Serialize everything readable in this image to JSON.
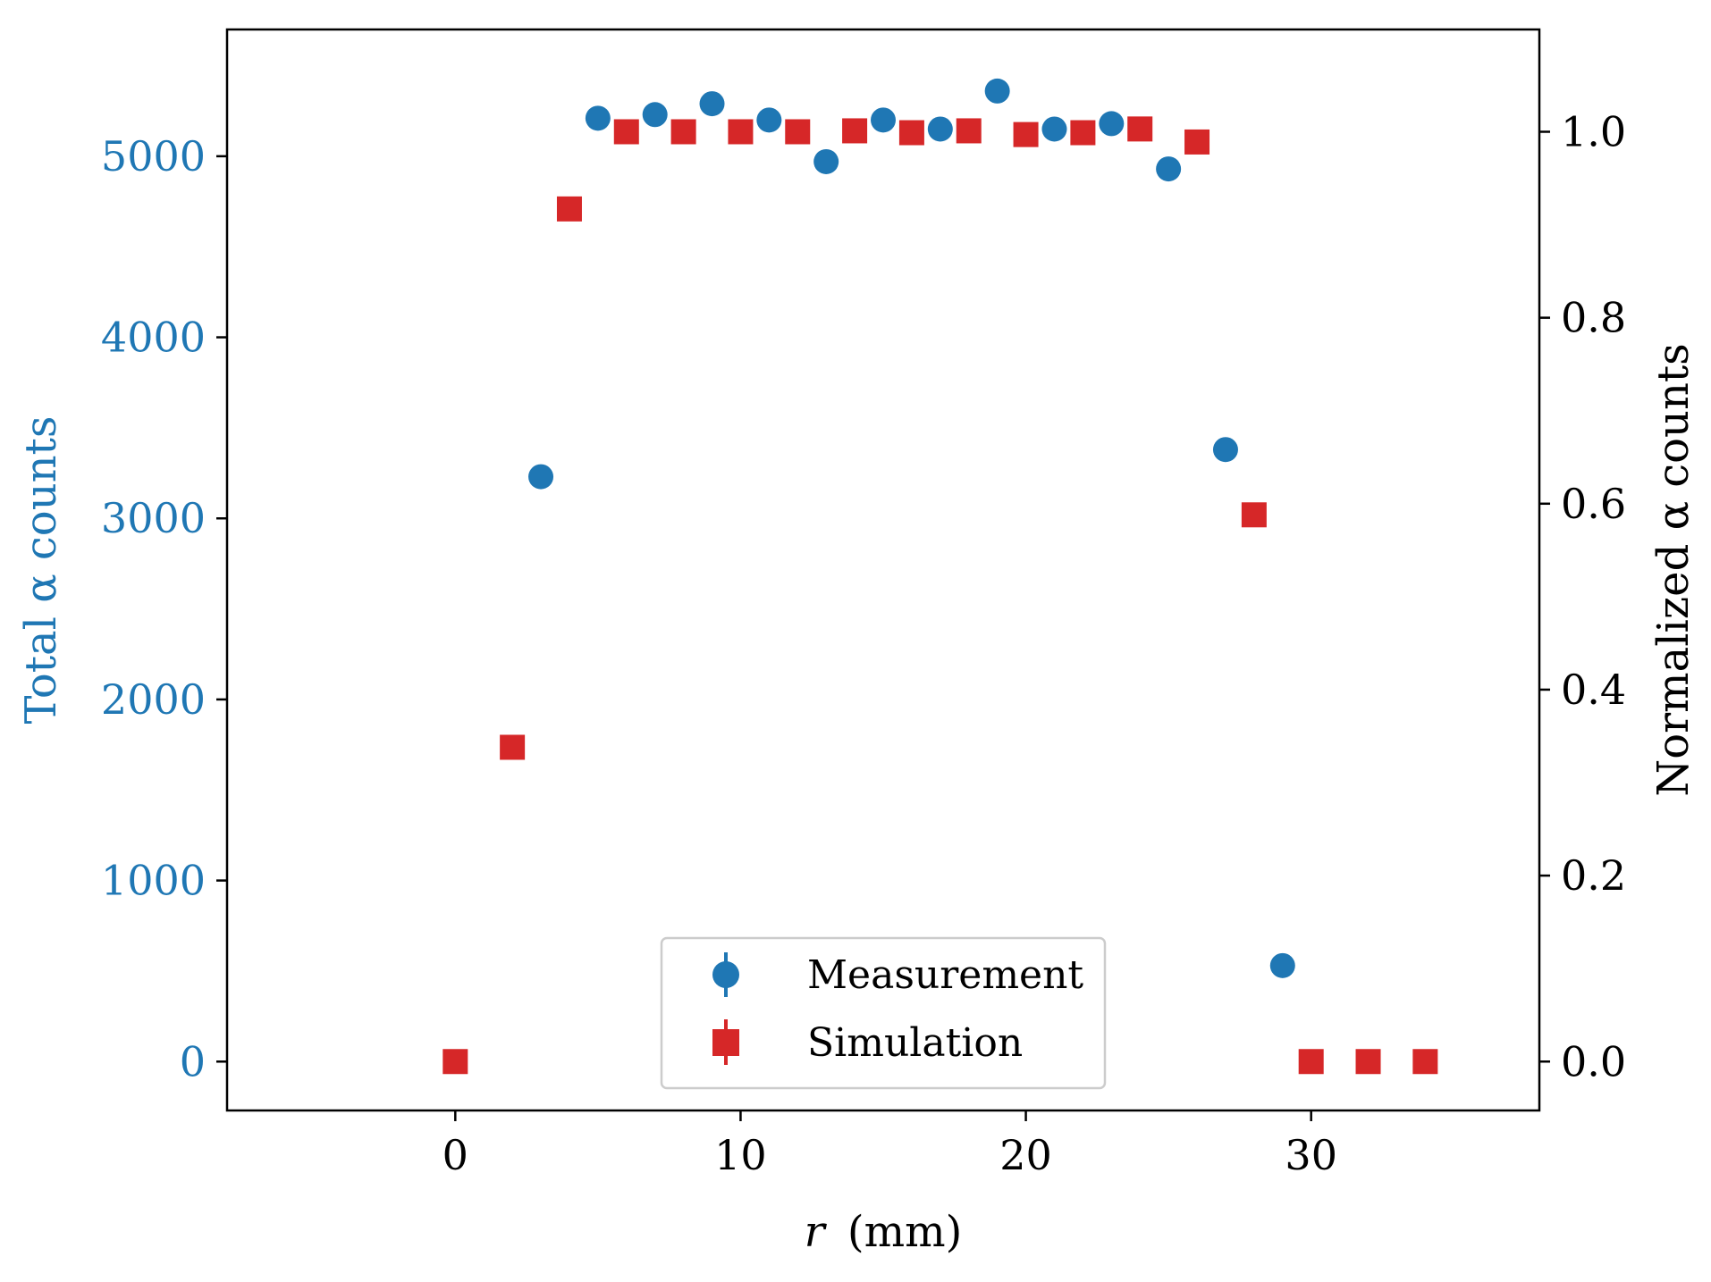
{
  "chart_data": {
    "type": "scatter",
    "xlabel": "r (mm)",
    "xlabel_var": "r",
    "xlabel_unit": "(mm)",
    "ylabel_left": "Total α counts",
    "ylabel_right": "Normalized α counts",
    "xlim": [
      -8,
      38
    ],
    "ylim_left": [
      -270,
      5700
    ],
    "ylim_right": [
      -0.0526,
      1.11
    ],
    "x_ticks": [
      0,
      10,
      20,
      30
    ],
    "x_tick_labels": [
      "0",
      "10",
      "20",
      "30"
    ],
    "y_left_ticks": [
      0,
      1000,
      2000,
      3000,
      4000,
      5000
    ],
    "y_left_tick_labels": [
      "0",
      "1000",
      "2000",
      "3000",
      "4000",
      "5000"
    ],
    "y_right_ticks": [
      0.0,
      0.2,
      0.4,
      0.6,
      0.8,
      1.0
    ],
    "y_right_tick_labels": [
      "0.0",
      "0.2",
      "0.4",
      "0.6",
      "0.8",
      "1.0"
    ],
    "legend_position": "bottom-center",
    "series": [
      {
        "name": "Measurement",
        "axis": "left",
        "marker": "circle",
        "color": "#1f77b4",
        "x": [
          3,
          5,
          7,
          9,
          11,
          13,
          15,
          17,
          19,
          21,
          23,
          25,
          27,
          29
        ],
        "y": [
          3230,
          5210,
          5230,
          5290,
          5200,
          4970,
          5200,
          5150,
          5360,
          5150,
          5180,
          4930,
          3380,
          530
        ]
      },
      {
        "name": "Simulation",
        "axis": "right",
        "marker": "square",
        "color": "#d62728",
        "x": [
          0,
          2,
          4,
          6,
          8,
          10,
          12,
          14,
          16,
          18,
          20,
          22,
          24,
          26,
          28,
          30,
          32,
          34
        ],
        "y": [
          0.0,
          0.338,
          0.917,
          1.0,
          1.0,
          1.0,
          1.0,
          1.001,
          0.999,
          1.001,
          0.997,
          0.999,
          1.003,
          0.989,
          0.588,
          0.0,
          0.0,
          0.0
        ]
      }
    ]
  },
  "colors": {
    "left_axis": "#1f77b4",
    "measurement": "#1f77b4",
    "simulation": "#d62728"
  }
}
